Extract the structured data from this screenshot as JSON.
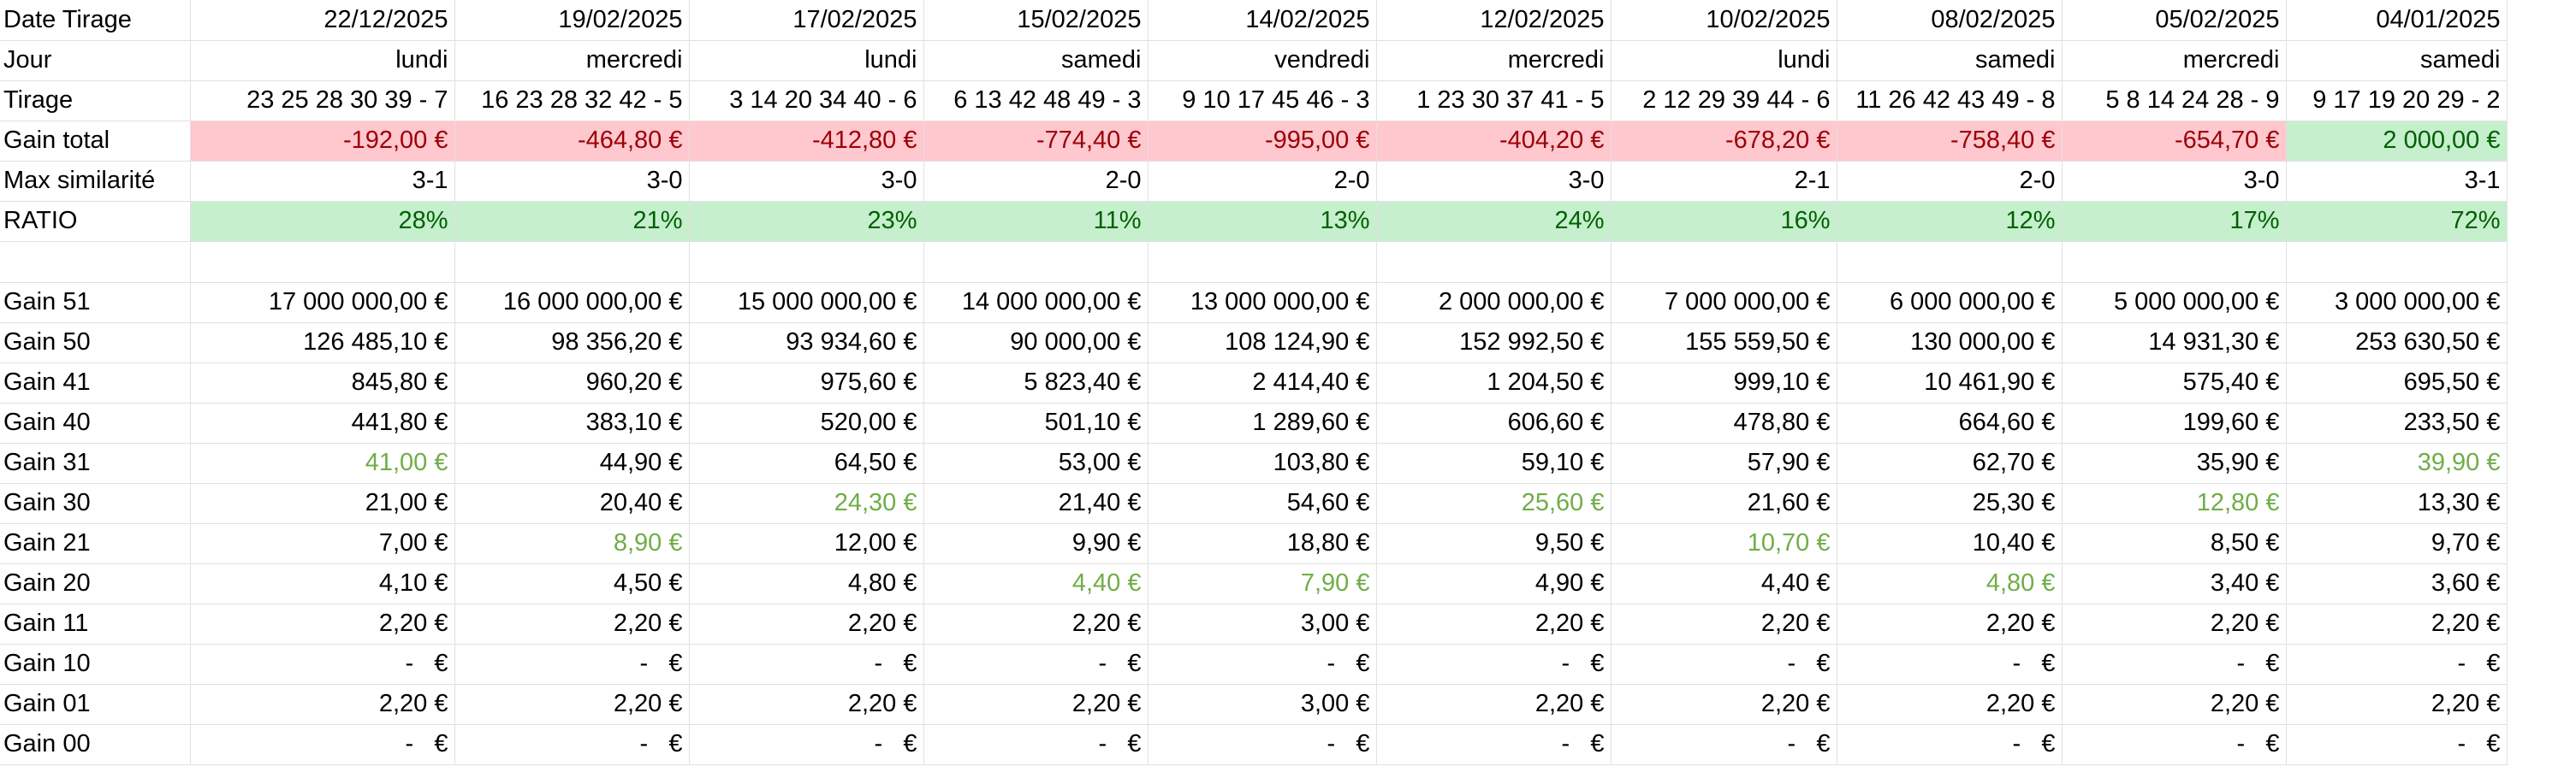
{
  "sheet": {
    "columns": [
      {
        "date": "22/12/2025",
        "jour": "lundi",
        "tirage": "23 25 28 30 39 - 7",
        "gain_total": "-192,00 €",
        "max_similarite": "3-1",
        "ratio": "28%",
        "gains": [
          "17 000 000,00 €",
          "126 485,10 €",
          "845,80 €",
          "441,80 €",
          "41,00 €",
          "21,00 €",
          "7,00 €",
          "4,10 €",
          "2,20 €",
          "-   €",
          "2,20 €",
          "-   €"
        ]
      },
      {
        "date": "19/02/2025",
        "jour": "mercredi",
        "tirage": "16 23 28 32 42 - 5",
        "gain_total": "-464,80 €",
        "max_similarite": "3-0",
        "ratio": "21%",
        "gains": [
          "16 000 000,00 €",
          "98 356,20 €",
          "960,20 €",
          "383,10 €",
          "44,90 €",
          "20,40 €",
          "8,90 €",
          "4,50 €",
          "2,20 €",
          "-   €",
          "2,20 €",
          "-   €"
        ]
      },
      {
        "date": "17/02/2025",
        "jour": "lundi",
        "tirage": "3 14 20 34 40 - 6",
        "gain_total": "-412,80 €",
        "max_similarite": "3-0",
        "ratio": "23%",
        "gains": [
          "15 000 000,00 €",
          "93 934,60 €",
          "975,60 €",
          "520,00 €",
          "64,50 €",
          "24,30 €",
          "12,00 €",
          "4,80 €",
          "2,20 €",
          "-   €",
          "2,20 €",
          "-   €"
        ]
      },
      {
        "date": "15/02/2025",
        "jour": "samedi",
        "tirage": "6 13 42 48 49 - 3",
        "gain_total": "-774,40 €",
        "max_similarite": "2-0",
        "ratio": "11%",
        "gains": [
          "14 000 000,00 €",
          "90 000,00 €",
          "5 823,40 €",
          "501,10 €",
          "53,00 €",
          "21,40 €",
          "9,90 €",
          "4,40 €",
          "2,20 €",
          "-   €",
          "2,20 €",
          "-   €"
        ]
      },
      {
        "date": "14/02/2025",
        "jour": "vendredi",
        "tirage": "9 10 17 45 46 - 3",
        "gain_total": "-995,00 €",
        "max_similarite": "2-0",
        "ratio": "13%",
        "gains": [
          "13 000 000,00 €",
          "108 124,90 €",
          "2 414,40 €",
          "1 289,60 €",
          "103,80 €",
          "54,60 €",
          "18,80 €",
          "7,90 €",
          "3,00 €",
          "-   €",
          "3,00 €",
          "-   €"
        ]
      },
      {
        "date": "12/02/2025",
        "jour": "mercredi",
        "tirage": "1 23 30 37 41 - 5",
        "gain_total": "-404,20 €",
        "max_similarite": "3-0",
        "ratio": "24%",
        "gains": [
          "2 000 000,00 €",
          "152 992,50 €",
          "1 204,50 €",
          "606,60 €",
          "59,10 €",
          "25,60 €",
          "9,50 €",
          "4,90 €",
          "2,20 €",
          "-   €",
          "2,20 €",
          "-   €"
        ]
      },
      {
        "date": "10/02/2025",
        "jour": "lundi",
        "tirage": "2 12 29 39 44 - 6",
        "gain_total": "-678,20 €",
        "max_similarite": "2-1",
        "ratio": "16%",
        "gains": [
          "7 000 000,00 €",
          "155 559,50 €",
          "999,10 €",
          "478,80 €",
          "57,90 €",
          "21,60 €",
          "10,70 €",
          "4,40 €",
          "2,20 €",
          "-   €",
          "2,20 €",
          "-   €"
        ]
      },
      {
        "date": "08/02/2025",
        "jour": "samedi",
        "tirage": "11 26 42 43 49 - 8",
        "gain_total": "-758,40 €",
        "max_similarite": "2-0",
        "ratio": "12%",
        "gains": [
          "6 000 000,00 €",
          "130 000,00 €",
          "10 461,90 €",
          "664,60 €",
          "62,70 €",
          "25,30 €",
          "10,40 €",
          "4,80 €",
          "2,20 €",
          "-   €",
          "2,20 €",
          "-   €"
        ]
      },
      {
        "date": "05/02/2025",
        "jour": "mercredi",
        "tirage": "5 8 14 24 28 - 9",
        "gain_total": "-654,70 €",
        "max_similarite": "3-0",
        "ratio": "17%",
        "gains": [
          "5 000 000,00 €",
          "14 931,30 €",
          "575,40 €",
          "199,60 €",
          "35,90 €",
          "12,80 €",
          "8,50 €",
          "3,40 €",
          "2,20 €",
          "-   €",
          "2,20 €",
          "-   €"
        ]
      },
      {
        "date": "04/01/2025",
        "jour": "samedi",
        "tirage": "9 17 19 20 29 - 2",
        "gain_total": "2 000,00 €",
        "max_similarite": "3-1",
        "ratio": "72%",
        "gains": [
          "3 000 000,00 €",
          "253 630,50 €",
          "695,50 €",
          "233,50 €",
          "39,90 €",
          "13,30 €",
          "9,70 €",
          "3,60 €",
          "2,20 €",
          "-   €",
          "2,20 €",
          "-   €"
        ]
      }
    ],
    "head_rows": [
      {
        "label": "Date Tirage",
        "key": "date"
      },
      {
        "label": "Jour",
        "key": "jour"
      },
      {
        "label": "Tirage",
        "key": "tirage"
      },
      {
        "label": "Gain total",
        "key": "gain_total",
        "conditional": true
      },
      {
        "label": "Max similarité",
        "key": "max_similarite"
      },
      {
        "label": "RATIO",
        "key": "ratio",
        "conditional": true
      }
    ],
    "gain_labels": [
      "Gain 51",
      "Gain 50",
      "Gain 41",
      "Gain 40",
      "Gain 31",
      "Gain 30",
      "Gain 21",
      "Gain 20",
      "Gain 11",
      "Gain 10",
      "Gain 01",
      "Gain 00"
    ],
    "highlighted_cells": [
      [
        4,
        0
      ],
      [
        6,
        1
      ],
      [
        5,
        2
      ],
      [
        7,
        3
      ],
      [
        7,
        4
      ],
      [
        5,
        5
      ],
      [
        6,
        6
      ],
      [
        7,
        7
      ],
      [
        5,
        8
      ],
      [
        4,
        9
      ]
    ],
    "colors": {
      "negative_fill": "#ffc7ce",
      "negative_text": "#9c0006",
      "positive_fill": "#c6efce",
      "positive_text": "#006100",
      "highlight_text": "#70ad47",
      "grid_line": "#e1e1e1"
    }
  }
}
